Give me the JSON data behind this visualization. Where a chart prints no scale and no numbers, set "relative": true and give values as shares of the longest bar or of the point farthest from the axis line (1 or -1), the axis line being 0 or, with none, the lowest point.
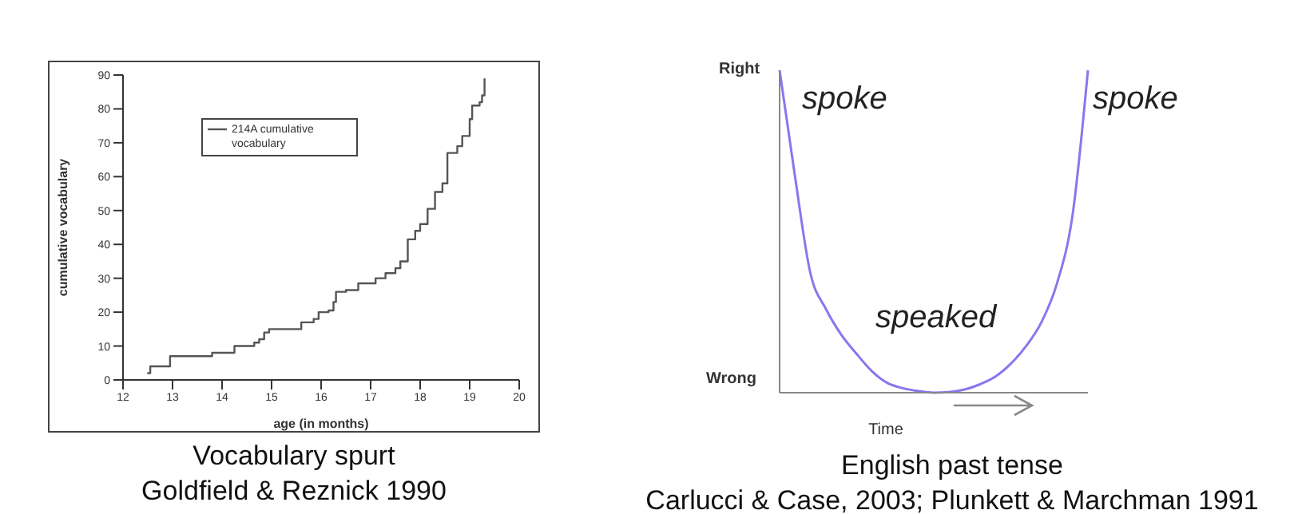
{
  "chart_data": [
    {
      "type": "step",
      "xlabel": "age (in months)",
      "ylabel": "cumulative vocabulary",
      "xlim": [
        12,
        20
      ],
      "xticks": [
        12,
        13,
        14,
        15,
        16,
        17,
        18,
        19,
        20
      ],
      "ylim": [
        0,
        90
      ],
      "yticks": [
        0,
        10,
        20,
        30,
        40,
        50,
        60,
        70,
        80,
        90
      ],
      "grid": false,
      "legend": "top left",
      "marker": "none",
      "line_style": "solid",
      "series": [
        {
          "name": "214A cumulative vocabulary",
          "color": "#555555",
          "x": [
            12.49,
            12.55,
            12.8,
            12.95,
            13.7,
            13.8,
            14.1,
            14.25,
            14.5,
            14.65,
            14.75,
            14.85,
            14.95,
            15.4,
            15.6,
            15.85,
            15.95,
            16.15,
            16.25,
            16.3,
            16.5,
            16.75,
            17.1,
            17.3,
            17.5,
            17.6,
            17.75,
            17.9,
            18.0,
            18.15,
            18.3,
            18.45,
            18.55,
            18.75,
            18.85,
            19.0,
            19.05,
            19.2,
            19.25,
            19.3
          ],
          "values": [
            2,
            4,
            4,
            7,
            7,
            8,
            8,
            10,
            10,
            11,
            12,
            14,
            15,
            15,
            17,
            18,
            20,
            20.5,
            23,
            26,
            26.5,
            28.5,
            30,
            31.5,
            33,
            35,
            41.5,
            44,
            46,
            50.5,
            55.5,
            58,
            67,
            69,
            72,
            77,
            81,
            82,
            84,
            89
          ]
        }
      ],
      "annotations": [
        "Vocabulary spurt",
        "Goldfield & Reznick 1990"
      ]
    },
    {
      "type": "line",
      "relative": true,
      "xlabel": "Time",
      "grid": false,
      "legend": false,
      "marker": "none",
      "line_style": "solid",
      "categories": [
        null,
        null,
        null,
        null,
        null,
        null,
        null,
        null,
        null,
        null,
        null,
        null,
        null,
        null,
        null,
        null,
        null,
        null,
        null,
        null,
        null
      ],
      "series": [
        {
          "color": "#8877ee",
          "values": [
            1,
            0.67,
            0.37,
            0.26,
            0.18,
            0.12,
            0.066,
            0.03,
            0.014,
            0.005,
            0,
            0.002,
            0.01,
            0.026,
            0.05,
            0.09,
            0.145,
            0.22,
            0.34,
            0.55,
            1
          ]
        }
      ],
      "annotations": [
        "Right",
        "Wrong",
        "spoke",
        "spoke",
        "speaked",
        "English past tense",
        "Carlucci & Case, 2003; Plunkett & Marchman 1991"
      ]
    }
  ]
}
